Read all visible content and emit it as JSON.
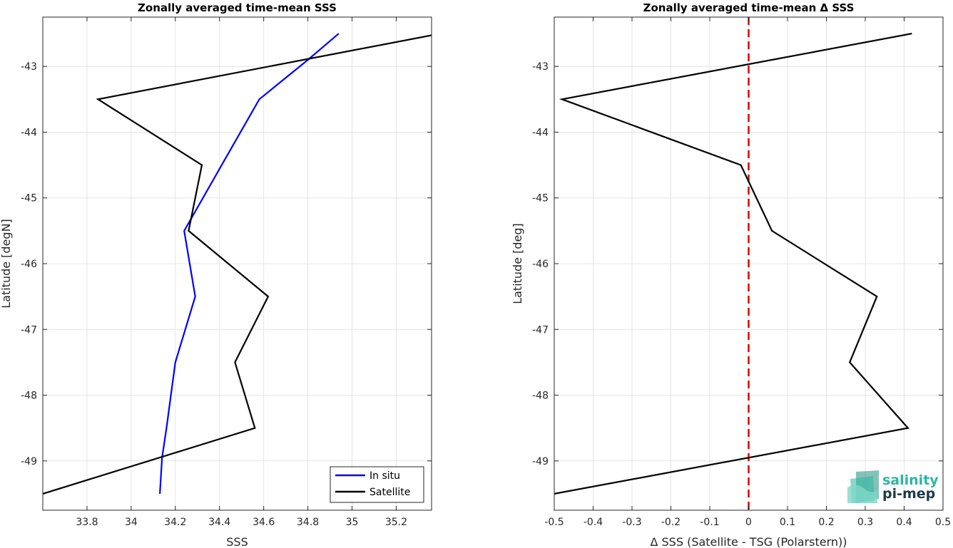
{
  "chart_data": [
    {
      "type": "line",
      "title": "Zonally averaged time-mean SSS",
      "xlabel": "SSS",
      "ylabel": "Latitude [degN]",
      "xlim": [
        33.6,
        35.36
      ],
      "ylim": [
        -49.75,
        -42.25
      ],
      "xticks": [
        33.8,
        34,
        34.2,
        34.4,
        34.6,
        34.8,
        35,
        35.2
      ],
      "xtick_labels": [
        "33.8",
        "34",
        "34.2",
        "34.4",
        "34.6",
        "34.8",
        "35",
        "35.2"
      ],
      "yticks": [
        -49,
        -48,
        -47,
        -46,
        -45,
        -44,
        -43
      ],
      "ytick_labels": [
        "-49",
        "-48",
        "-47",
        "-46",
        "-45",
        "-44",
        "-43"
      ],
      "grid": true,
      "legend_position": "bottom-right",
      "series": [
        {
          "name": "In situ",
          "color": "#0000ff",
          "x": [
            34.94,
            34.8,
            34.58,
            34.41,
            34.24,
            34.29,
            34.2,
            34.16,
            34.14,
            34.13
          ],
          "y": [
            -42.5,
            -42.9,
            -43.5,
            -44.5,
            -45.5,
            -46.5,
            -47.5,
            -48.5,
            -48.95,
            -49.5
          ]
        },
        {
          "name": "Satellite",
          "color": "#000000",
          "x": [
            35.4,
            33.85,
            34.32,
            34.26,
            34.62,
            34.47,
            34.56,
            33.6
          ],
          "y": [
            -42.5,
            -43.5,
            -44.5,
            -45.5,
            -46.5,
            -47.5,
            -48.5,
            -49.5
          ]
        }
      ]
    },
    {
      "type": "line",
      "title": "Zonally averaged time-mean Δ SSS",
      "xlabel": "Δ SSS (Satellite - TSG (Polarstern))",
      "ylabel": "Latitude [deg]",
      "xlim": [
        -0.5,
        0.5
      ],
      "ylim": [
        -49.75,
        -42.25
      ],
      "xticks": [
        -0.5,
        -0.4,
        -0.3,
        -0.2,
        -0.1,
        0,
        0.1,
        0.2,
        0.3,
        0.4,
        0.5
      ],
      "xtick_labels": [
        "-0.5",
        "-0.4",
        "-0.3",
        "-0.2",
        "-0.1",
        "0",
        "0.1",
        "0.2",
        "0.3",
        "0.4",
        "0.5"
      ],
      "yticks": [
        -49,
        -48,
        -47,
        -46,
        -45,
        -44,
        -43
      ],
      "ytick_labels": [
        "-49",
        "-48",
        "-47",
        "-46",
        "-45",
        "-44",
        "-43"
      ],
      "grid": true,
      "reference_line": {
        "x": 0,
        "color": "#e00000",
        "style": "dashed"
      },
      "series": [
        {
          "color": "#000000",
          "x": [
            0.42,
            -0.48,
            -0.02,
            0.06,
            0.33,
            0.26,
            0.41,
            -0.5
          ],
          "y": [
            -42.5,
            -43.5,
            -44.5,
            -45.5,
            -46.5,
            -47.5,
            -48.5,
            -49.5
          ]
        }
      ]
    }
  ],
  "logo": {
    "line1": "salinity",
    "line2": "pi-mep",
    "colors": {
      "teal": "#2bb7a0",
      "dark": "#1d3b47"
    }
  }
}
